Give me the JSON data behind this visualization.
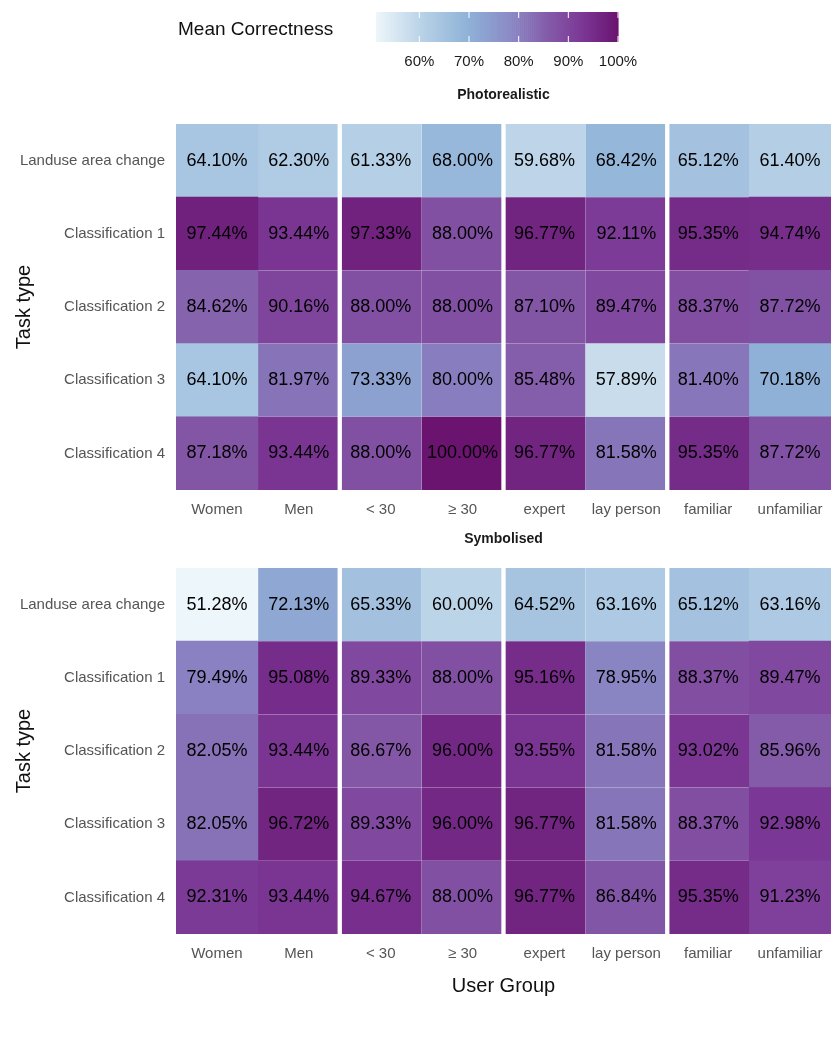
{
  "chart_data": [
    {
      "type": "heatmap",
      "title": "Photorealistic",
      "ylabel": "Task type",
      "clabel": "Mean Correctness",
      "clim": [
        51.28,
        100
      ],
      "cticks": [
        {
          "value": 60,
          "label": "60%"
        },
        {
          "value": 70,
          "label": "70%"
        },
        {
          "value": 80,
          "label": "80%"
        },
        {
          "value": 90,
          "label": "90%"
        },
        {
          "value": 100,
          "label": "100%"
        }
      ],
      "categories": [
        "Women",
        "Men",
        "< 30",
        "≥ 30",
        "expert",
        "lay person",
        "familiar",
        "unfamiliar"
      ],
      "y_categories": [
        "Landuse area change",
        "Classification 1",
        "Classification 2",
        "Classification 3",
        "Classification 4"
      ],
      "cells": [
        [
          64.1,
          62.3,
          61.33,
          68.0,
          59.68,
          68.42,
          65.12,
          61.4
        ],
        [
          97.44,
          93.44,
          97.33,
          88.0,
          96.77,
          92.11,
          95.35,
          94.74
        ],
        [
          84.62,
          90.16,
          88.0,
          88.0,
          87.1,
          89.47,
          88.37,
          87.72
        ],
        [
          64.1,
          81.97,
          73.33,
          80.0,
          85.48,
          57.89,
          81.4,
          70.18
        ],
        [
          87.18,
          93.44,
          88.0,
          100.0,
          96.77,
          81.58,
          95.35,
          87.72
        ]
      ],
      "cell_labels": [
        [
          "64.10%",
          "62.30%",
          "61.33%",
          "68.00%",
          "59.68%",
          "68.42%",
          "65.12%",
          "61.40%"
        ],
        [
          "97.44%",
          "93.44%",
          "97.33%",
          "88.00%",
          "96.77%",
          "92.11%",
          "95.35%",
          "94.74%"
        ],
        [
          "84.62%",
          "90.16%",
          "88.00%",
          "88.00%",
          "87.10%",
          "89.47%",
          "88.37%",
          "87.72%"
        ],
        [
          "64.10%",
          "81.97%",
          "73.33%",
          "80.00%",
          "85.48%",
          "57.89%",
          "81.40%",
          "70.18%"
        ],
        [
          "87.18%",
          "93.44%",
          "88.00%",
          "100.00%",
          "96.77%",
          "81.58%",
          "95.35%",
          "87.72%"
        ]
      ]
    },
    {
      "type": "heatmap",
      "title": "Symbolised",
      "ylabel": "Task type",
      "xlabel": "User Group",
      "categories": [
        "Women",
        "Men",
        "< 30",
        "≥ 30",
        "expert",
        "lay person",
        "familiar",
        "unfamiliar"
      ],
      "y_categories": [
        "Landuse area change",
        "Classification 1",
        "Classification 2",
        "Classification 3",
        "Classification 4"
      ],
      "cells": [
        [
          51.28,
          72.13,
          65.33,
          60.0,
          64.52,
          63.16,
          65.12,
          63.16
        ],
        [
          79.49,
          95.08,
          89.33,
          88.0,
          95.16,
          78.95,
          88.37,
          89.47
        ],
        [
          82.05,
          93.44,
          86.67,
          96.0,
          93.55,
          81.58,
          93.02,
          85.96
        ],
        [
          82.05,
          96.72,
          89.33,
          96.0,
          96.77,
          81.58,
          88.37,
          92.98
        ],
        [
          92.31,
          93.44,
          94.67,
          88.0,
          96.77,
          86.84,
          95.35,
          91.23
        ]
      ],
      "cell_labels": [
        [
          "51.28%",
          "72.13%",
          "65.33%",
          "60.00%",
          "64.52%",
          "63.16%",
          "65.12%",
          "63.16%"
        ],
        [
          "79.49%",
          "95.08%",
          "89.33%",
          "88.00%",
          "95.16%",
          "78.95%",
          "88.37%",
          "89.47%"
        ],
        [
          "82.05%",
          "93.44%",
          "86.67%",
          "96.00%",
          "93.55%",
          "81.58%",
          "93.02%",
          "85.96%"
        ],
        [
          "82.05%",
          "96.72%",
          "89.33%",
          "96.00%",
          "96.77%",
          "81.58%",
          "88.37%",
          "92.98%"
        ],
        [
          "92.31%",
          "93.44%",
          "94.67%",
          "88.00%",
          "96.77%",
          "86.84%",
          "95.35%",
          "91.23%"
        ]
      ]
    }
  ]
}
